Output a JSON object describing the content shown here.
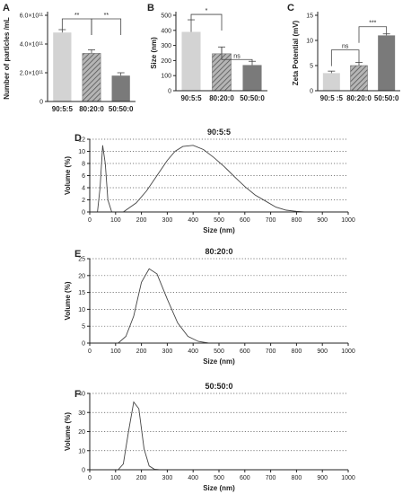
{
  "chart_data": [
    {
      "panel": "A",
      "type": "bar",
      "categories": [
        "90:5:5",
        "80:20:0",
        "50:50:0"
      ],
      "values": [
        480000000000.0,
        335000000000.0,
        180000000000.0
      ],
      "errors": [
        20000000000.0,
        25000000000.0,
        20000000000.0
      ],
      "ylabel": "Number of particles /mL",
      "ylim": [
        0,
        600000000000.0
      ],
      "yticks": [
        0,
        200000000000.0,
        400000000000.0,
        600000000000.0
      ],
      "ytick_labels": [
        "0",
        "2.0×10¹¹",
        "4.0×10¹¹",
        "6.0×10¹¹"
      ],
      "fills": [
        "solid-light",
        "hatched",
        "solid-dark"
      ],
      "colors": [
        "#d3d3d3",
        "#9a9a9a",
        "#7a7a7a"
      ],
      "significance": [
        {
          "from": 0,
          "to": 1,
          "label": "**"
        },
        {
          "from": 1,
          "to": 2,
          "label": "**"
        }
      ]
    },
    {
      "panel": "B",
      "type": "bar",
      "categories": [
        "90:5:5",
        "80:20:0",
        "50:50:0"
      ],
      "values": [
        390,
        245,
        170
      ],
      "errors": [
        80,
        45,
        25
      ],
      "ylabel": "Size (nm)",
      "ylim": [
        0,
        500
      ],
      "yticks": [
        0,
        100,
        200,
        300,
        400,
        500
      ],
      "ytick_labels": [
        "0",
        "100",
        "200",
        "300",
        "400",
        "500"
      ],
      "fills": [
        "solid-light",
        "hatched",
        "solid-dark"
      ],
      "colors": [
        "#d3d3d3",
        "#9a9a9a",
        "#7a7a7a"
      ],
      "significance": [
        {
          "from": 0,
          "to": 1,
          "label": "*"
        },
        {
          "from": 1,
          "to": 2,
          "label": "ns"
        }
      ]
    },
    {
      "panel": "C",
      "type": "bar",
      "categories": [
        "90:5 :5",
        "80:20:0",
        "50:50:0"
      ],
      "values": [
        3.5,
        5.0,
        11.0
      ],
      "errors": [
        0.4,
        0.6,
        0.3
      ],
      "ylabel": "Zeta Potential (mV)",
      "ylim": [
        0,
        15
      ],
      "yticks": [
        0,
        5,
        10,
        15
      ],
      "ytick_labels": [
        "0",
        "5",
        "10",
        "15"
      ],
      "fills": [
        "solid-light",
        "hatched",
        "solid-dark"
      ],
      "colors": [
        "#d3d3d3",
        "#9a9a9a",
        "#7a7a7a"
      ],
      "significance": [
        {
          "from": 0,
          "to": 1,
          "label": "ns"
        },
        {
          "from": 1,
          "to": 2,
          "label": "***"
        }
      ]
    },
    {
      "panel": "D",
      "type": "line",
      "title": "90:5:5",
      "xlabel": "Size (nm)",
      "ylabel": "Volume (%)",
      "xlim": [
        0,
        1000
      ],
      "ylim": [
        0,
        12
      ],
      "xticks": [
        0,
        100,
        200,
        300,
        400,
        500,
        600,
        700,
        800,
        900,
        1000
      ],
      "yticks": [
        0,
        2,
        4,
        6,
        8,
        10,
        12
      ],
      "grid": true,
      "x": [
        30,
        40,
        50,
        60,
        70,
        85,
        130,
        180,
        220,
        260,
        300,
        330,
        360,
        400,
        440,
        480,
        520,
        560,
        600,
        640,
        680,
        720,
        760,
        800,
        830
      ],
      "y": [
        0,
        4,
        11,
        8,
        2,
        0,
        0,
        1.5,
        3.5,
        6,
        8.5,
        10,
        10.8,
        11,
        10.3,
        9,
        7.5,
        5.8,
        4.2,
        2.8,
        1.8,
        0.8,
        0.3,
        0.1,
        0
      ]
    },
    {
      "panel": "E",
      "type": "line",
      "title": "80:20:0",
      "xlabel": "Size (nm)",
      "ylabel": "Volume (%)",
      "xlim": [
        0,
        1000
      ],
      "ylim": [
        0,
        25
      ],
      "xticks": [
        0,
        100,
        200,
        300,
        400,
        500,
        600,
        700,
        800,
        900,
        1000
      ],
      "yticks": [
        0,
        5,
        10,
        15,
        20,
        25
      ],
      "grid": true,
      "x": [
        110,
        140,
        170,
        200,
        230,
        260,
        300,
        340,
        380,
        420,
        460
      ],
      "y": [
        0,
        2,
        8,
        18,
        22,
        20.5,
        13,
        6,
        2,
        0.5,
        0
      ]
    },
    {
      "panel": "F",
      "type": "line",
      "title": "50:50:0",
      "xlabel": "Size (nm)",
      "ylabel": "Volume (%)",
      "xlim": [
        0,
        1000
      ],
      "ylim": [
        0,
        40
      ],
      "xticks": [
        0,
        100,
        200,
        300,
        400,
        500,
        600,
        700,
        800,
        900,
        1000
      ],
      "yticks": [
        0,
        10,
        20,
        30,
        40
      ],
      "grid": true,
      "x": [
        110,
        130,
        150,
        170,
        190,
        210,
        230,
        250,
        270
      ],
      "y": [
        0,
        3,
        20,
        35.5,
        32,
        11,
        2,
        0.3,
        0
      ]
    }
  ]
}
